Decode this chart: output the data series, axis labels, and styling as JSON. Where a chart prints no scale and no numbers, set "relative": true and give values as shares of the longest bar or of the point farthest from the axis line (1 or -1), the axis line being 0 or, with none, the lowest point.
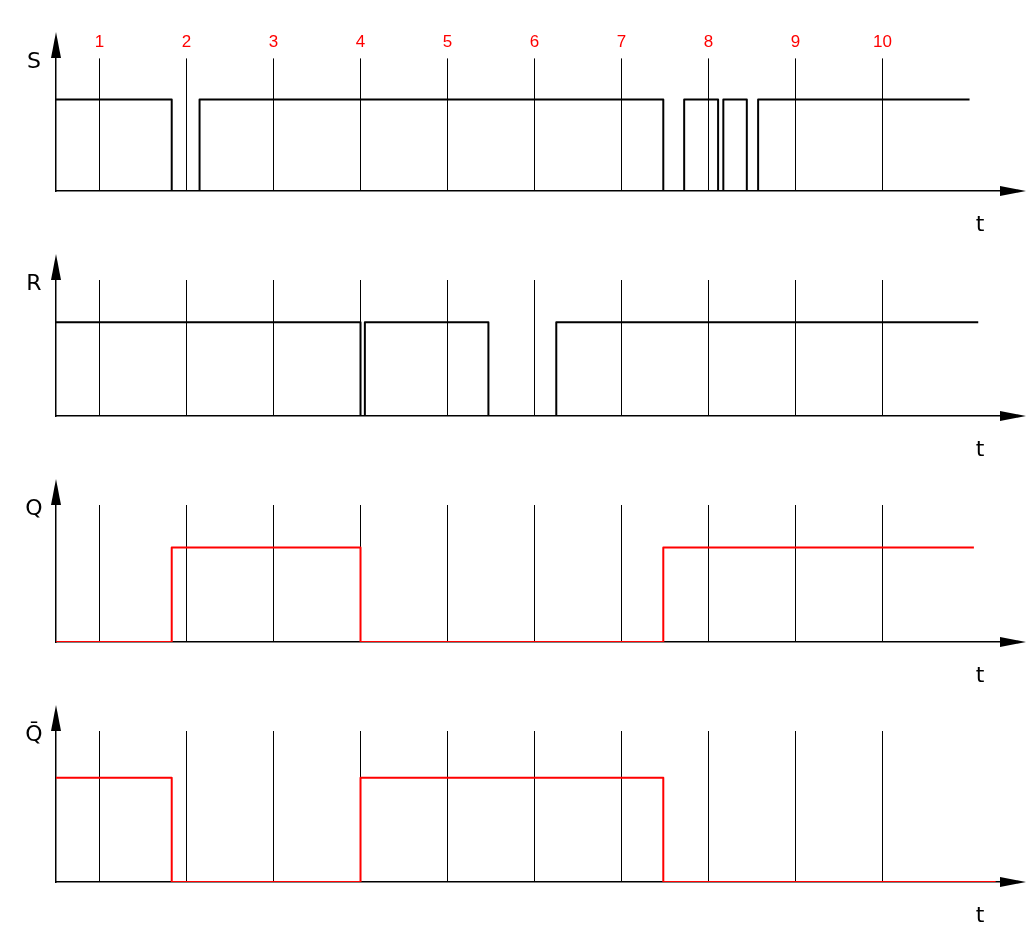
{
  "chart_data": [
    {
      "type": "step",
      "ylabel": "S",
      "xlabel": "t",
      "relative": true,
      "xlim": [
        0.5,
        11.35
      ],
      "xticks": [
        1,
        2,
        3,
        4,
        5,
        6,
        7,
        8,
        9,
        10
      ],
      "grid": "x",
      "tick_labels": "x",
      "legend": false,
      "x": [
        0.5,
        1.83,
        2.15,
        7.48,
        7.72,
        8.11,
        8.17,
        8.44,
        8.57,
        11.0
      ],
      "values": [
        1,
        0,
        1,
        0,
        1,
        0,
        1,
        0,
        1,
        1
      ],
      "color": "#000000"
    },
    {
      "type": "step",
      "ylabel": "R",
      "xlabel": "t",
      "relative": true,
      "xlim": [
        0.5,
        11.35
      ],
      "xticks": [
        1,
        2,
        3,
        4,
        5,
        6,
        7,
        8,
        9,
        10
      ],
      "grid": "x",
      "tick_labels": false,
      "legend": false,
      "x": [
        0.5,
        4.0,
        4.05,
        5.47,
        6.25,
        11.1
      ],
      "values": [
        1,
        0,
        1,
        0,
        1,
        1
      ],
      "color": "#000000"
    },
    {
      "type": "step",
      "ylabel": "Q",
      "xlabel": "t",
      "relative": true,
      "xlim": [
        0.5,
        11.35
      ],
      "xticks": [
        1,
        2,
        3,
        4,
        5,
        6,
        7,
        8,
        9,
        10
      ],
      "grid": "x",
      "tick_labels": false,
      "legend": false,
      "x": [
        0.5,
        1.83,
        4.0,
        7.48,
        11.05
      ],
      "values": [
        0,
        1,
        0,
        1,
        1
      ],
      "color": "#ff0000"
    },
    {
      "type": "step",
      "ylabel": "Q̄",
      "xlabel": "t",
      "relative": true,
      "xlim": [
        0.5,
        11.35
      ],
      "xticks": [
        1,
        2,
        3,
        4,
        5,
        6,
        7,
        8,
        9,
        10
      ],
      "grid": "x",
      "tick_labels": false,
      "legend": false,
      "x": [
        0.5,
        1.83,
        4.0,
        7.48,
        11.3
      ],
      "values": [
        1,
        0,
        1,
        0,
        0
      ],
      "color": "#ff0000"
    }
  ]
}
